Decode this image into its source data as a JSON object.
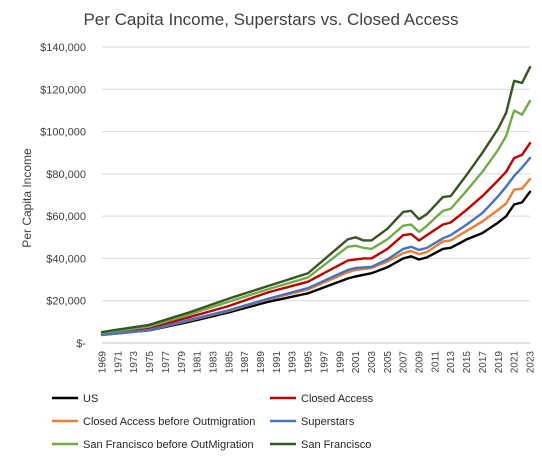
{
  "chart_data": {
    "type": "line",
    "title": "Per Capita Income, Superstars vs. Closed Access",
    "xlabel": "",
    "ylabel": "Per Capita Income",
    "ylim": [
      0,
      140000
    ],
    "yticks": [
      0,
      20000,
      40000,
      60000,
      80000,
      100000,
      120000,
      140000
    ],
    "ytick_labels": [
      "$-",
      "$20,000",
      "$40,000",
      "$60,000",
      "$80,000",
      "$100,000",
      "$120,000",
      "$140,000"
    ],
    "xlim": [
      1969,
      2023
    ],
    "xtick_labels": [
      "1969",
      "1971",
      "1973",
      "1975",
      "1977",
      "1979",
      "1981",
      "1983",
      "1985",
      "1987",
      "1989",
      "1991",
      "1993",
      "1995",
      "1997",
      "1999",
      "2001",
      "2003",
      "2005",
      "2007",
      "2009",
      "2011",
      "2013",
      "2015",
      "2017",
      "2019",
      "2021",
      "2023"
    ],
    "grid": true,
    "legend_position": "bottom",
    "series": [
      {
        "name": "US",
        "color": "#000000",
        "anchors": [
          [
            1969,
            3800
          ],
          [
            1975,
            6000
          ],
          [
            1980,
            10000
          ],
          [
            1985,
            14500
          ],
          [
            1990,
            19500
          ],
          [
            1995,
            23500
          ],
          [
            2000,
            30500
          ],
          [
            2001,
            31500
          ],
          [
            2003,
            33000
          ],
          [
            2005,
            35800
          ],
          [
            2007,
            40000
          ],
          [
            2008,
            41000
          ],
          [
            2009,
            39500
          ],
          [
            2010,
            40500
          ],
          [
            2012,
            44500
          ],
          [
            2013,
            45000
          ],
          [
            2015,
            49000
          ],
          [
            2017,
            52000
          ],
          [
            2019,
            57000
          ],
          [
            2020,
            60000
          ],
          [
            2021,
            65500
          ],
          [
            2022,
            66500
          ],
          [
            2023,
            71500
          ]
        ]
      },
      {
        "name": "Closed Access",
        "color": "#c00000",
        "anchors": [
          [
            1969,
            4400
          ],
          [
            1975,
            7000
          ],
          [
            1980,
            12200
          ],
          [
            1985,
            17500
          ],
          [
            1990,
            24000
          ],
          [
            1995,
            29000
          ],
          [
            2000,
            39000
          ],
          [
            2001,
            39500
          ],
          [
            2002,
            40000
          ],
          [
            2003,
            40000
          ],
          [
            2005,
            44500
          ],
          [
            2007,
            51000
          ],
          [
            2008,
            51500
          ],
          [
            2009,
            48500
          ],
          [
            2010,
            51000
          ],
          [
            2012,
            56000
          ],
          [
            2013,
            57000
          ],
          [
            2015,
            63000
          ],
          [
            2017,
            69500
          ],
          [
            2019,
            77000
          ],
          [
            2020,
            81000
          ],
          [
            2021,
            87500
          ],
          [
            2022,
            89000
          ],
          [
            2023,
            94500
          ]
        ]
      },
      {
        "name": "Closed Access before Outmigration",
        "color": "#ed7d31",
        "anchors": [
          [
            1969,
            3800
          ],
          [
            1975,
            6100
          ],
          [
            1980,
            10600
          ],
          [
            1985,
            15200
          ],
          [
            1990,
            20700
          ],
          [
            1995,
            25300
          ],
          [
            2000,
            33500
          ],
          [
            2001,
            34500
          ],
          [
            2003,
            35500
          ],
          [
            2005,
            38500
          ],
          [
            2007,
            42500
          ],
          [
            2008,
            43500
          ],
          [
            2009,
            42000
          ],
          [
            2010,
            43000
          ],
          [
            2012,
            48000
          ],
          [
            2013,
            48500
          ],
          [
            2015,
            53000
          ],
          [
            2017,
            57500
          ],
          [
            2019,
            63000
          ],
          [
            2020,
            66000
          ],
          [
            2021,
            72500
          ],
          [
            2022,
            73000
          ],
          [
            2023,
            77500
          ]
        ]
      },
      {
        "name": "Superstars",
        "color": "#4472c4",
        "anchors": [
          [
            1969,
            3900
          ],
          [
            1975,
            6200
          ],
          [
            1980,
            10900
          ],
          [
            1985,
            15500
          ],
          [
            1990,
            21000
          ],
          [
            1995,
            26000
          ],
          [
            2000,
            34500
          ],
          [
            2001,
            35500
          ],
          [
            2003,
            36000
          ],
          [
            2005,
            39500
          ],
          [
            2007,
            44500
          ],
          [
            2008,
            45500
          ],
          [
            2009,
            44000
          ],
          [
            2010,
            45000
          ],
          [
            2012,
            49500
          ],
          [
            2013,
            51000
          ],
          [
            2015,
            56000
          ],
          [
            2017,
            61500
          ],
          [
            2019,
            69500
          ],
          [
            2020,
            74000
          ],
          [
            2021,
            79000
          ],
          [
            2022,
            83000
          ],
          [
            2023,
            87500
          ]
        ]
      },
      {
        "name": "San Francisco before OutMigration",
        "color": "#70ad47",
        "anchors": [
          [
            1969,
            4800
          ],
          [
            1975,
            7800
          ],
          [
            1980,
            13500
          ],
          [
            1985,
            19500
          ],
          [
            1990,
            25500
          ],
          [
            1995,
            31000
          ],
          [
            2000,
            45500
          ],
          [
            2001,
            46000
          ],
          [
            2002,
            45000
          ],
          [
            2003,
            44500
          ],
          [
            2005,
            49000
          ],
          [
            2007,
            55500
          ],
          [
            2008,
            56000
          ],
          [
            2009,
            52500
          ],
          [
            2010,
            55500
          ],
          [
            2012,
            62500
          ],
          [
            2013,
            63500
          ],
          [
            2015,
            72000
          ],
          [
            2017,
            81000
          ],
          [
            2019,
            91500
          ],
          [
            2020,
            98000
          ],
          [
            2021,
            110000
          ],
          [
            2022,
            108000
          ],
          [
            2023,
            114500
          ]
        ]
      },
      {
        "name": "San Francisco",
        "color": "#375623",
        "anchors": [
          [
            1969,
            5200
          ],
          [
            1975,
            8600
          ],
          [
            1980,
            14500
          ],
          [
            1985,
            21000
          ],
          [
            1990,
            27000
          ],
          [
            1995,
            33000
          ],
          [
            2000,
            49000
          ],
          [
            2001,
            50000
          ],
          [
            2002,
            48500
          ],
          [
            2003,
            48500
          ],
          [
            2005,
            54000
          ],
          [
            2007,
            62000
          ],
          [
            2008,
            62500
          ],
          [
            2009,
            58500
          ],
          [
            2010,
            61000
          ],
          [
            2012,
            69000
          ],
          [
            2013,
            69500
          ],
          [
            2015,
            79500
          ],
          [
            2017,
            90000
          ],
          [
            2019,
            101500
          ],
          [
            2020,
            109000
          ],
          [
            2021,
            124000
          ],
          [
            2022,
            123000
          ],
          [
            2023,
            130500
          ]
        ]
      }
    ]
  }
}
